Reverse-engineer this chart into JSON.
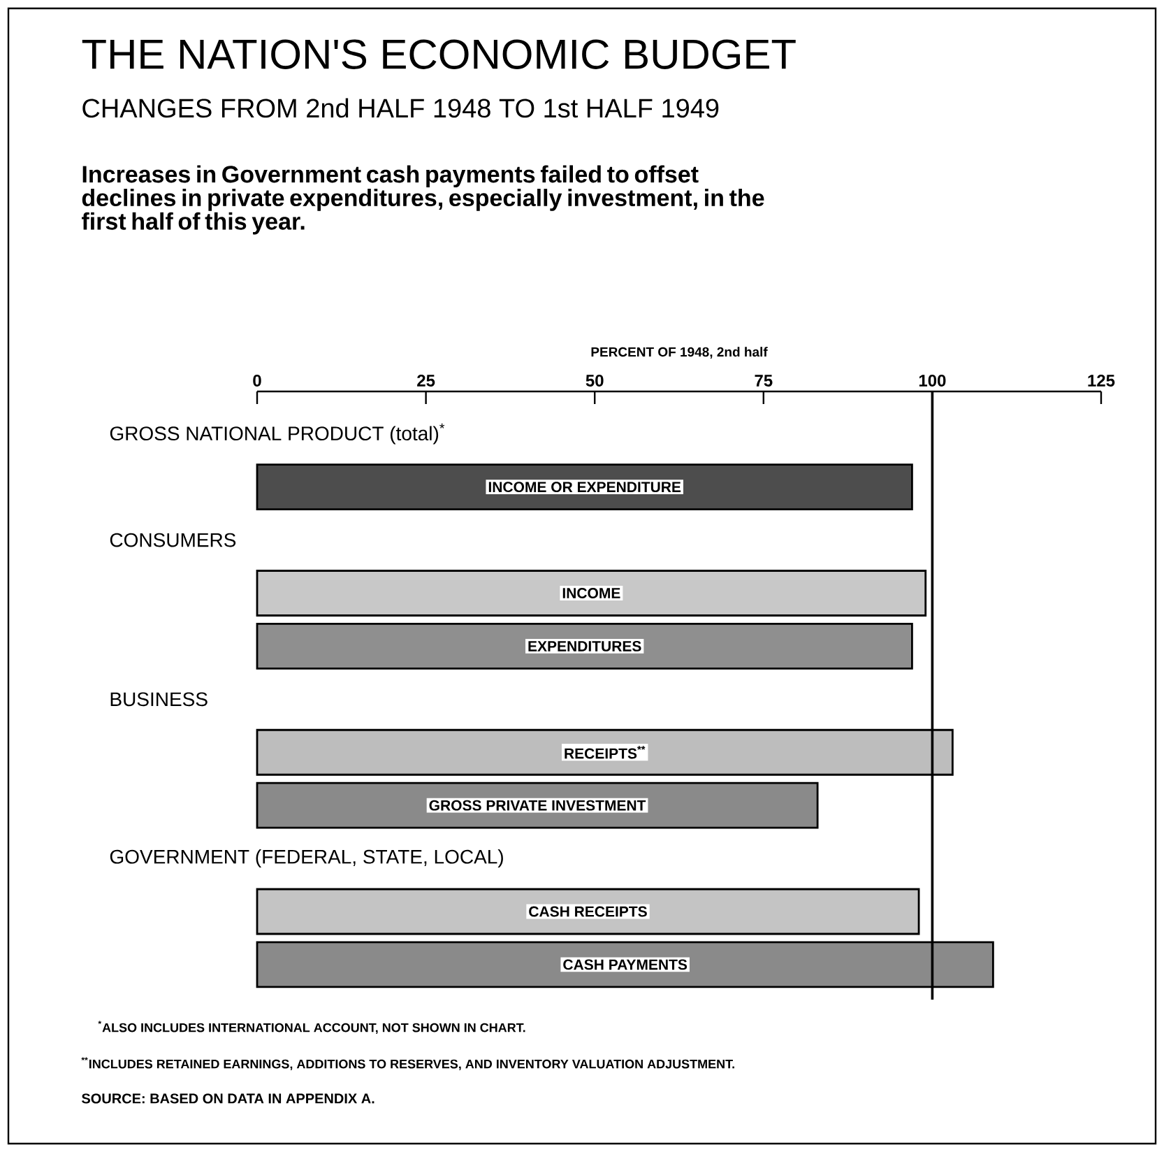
{
  "chart_data": {
    "type": "bar",
    "orientation": "horizontal",
    "title": "THE NATION'S ECONOMIC BUDGET",
    "subtitle": "CHANGES FROM 2nd HALF 1948 TO 1st HALF 1949",
    "xlabel": "PERCENT OF 1948, 2nd half",
    "categories": [
      "GROSS NATIONAL PRODUCT (total)$^{*}$",
      "INCOME OR EXPENDITURE",
      "CONSUMERS",
      "INCOME",
      "EXPENDITURES",
      "BUSINESS",
      "RECEIPTS$^{**}$",
      "GROSS PRIVATE INVESTMENT",
      "GOVERNMENT  (FEDERAL, STATE, LOCAL)",
      "CASH RECEIPTS",
      "CASH PAYMENTS"
    ],
    "values": [
      null,
      97,
      null,
      99,
      97,
      null,
      103,
      83,
      null,
      98,
      109
    ],
    "colors": [
      null,
      "#4d4d4d",
      null,
      "#c8c8c8",
      "#8f8f8f",
      null,
      "#bdbdbd",
      "#8a8a8a",
      null,
      "#c4c4c4",
      "#8a8a8a"
    ],
    "xlim": [
      0,
      125
    ],
    "xticks": [
      0,
      25,
      50,
      75,
      100,
      125
    ],
    "ref_lines": [
      {
        "axis": "x",
        "value": 100
      }
    ],
    "annotations": [
      "Increases in Government cash payments failed to offset declines in private expenditures, especially investment, in the first half of this year.",
      "$^{*}$ALSO INCLUDES INTERNATIONAL ACCOUNT, NOT SHOWN IN CHART.",
      "$^{**}$INCLUDES RETAINED EARNINGS, ADDITIONS TO RESERVES, AND INVENTORY VALUATION ADJUSTMENT.",
      "SOURCE: BASED ON DATA IN APPENDIX A."
    ]
  }
}
